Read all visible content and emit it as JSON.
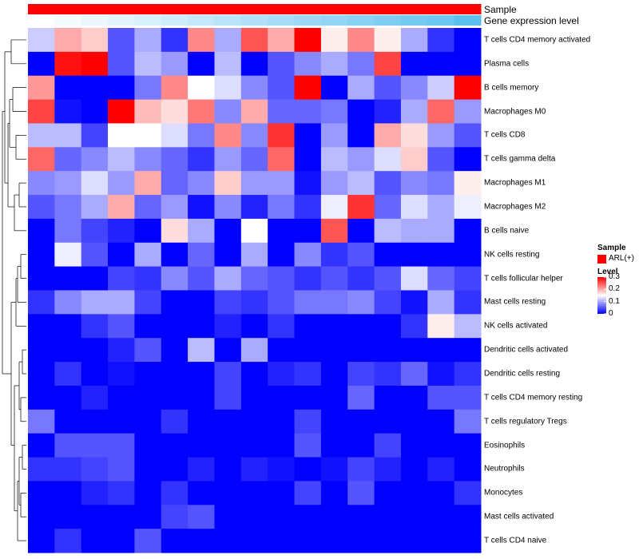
{
  "chart_data": {
    "type": "heatmap",
    "title": "",
    "column_annotations": [
      {
        "name": "Sample",
        "color": "#ff0000",
        "values": [
          "ARL(+)",
          "ARL(+)",
          "ARL(+)",
          "ARL(+)",
          "ARL(+)",
          "ARL(+)",
          "ARL(+)",
          "ARL(+)",
          "ARL(+)",
          "ARL(+)",
          "ARL(+)",
          "ARL(+)",
          "ARL(+)",
          "ARL(+)",
          "ARL(+)",
          "ARL(+)",
          "ARL(+)"
        ]
      },
      {
        "name": "Gene expression level",
        "color_low": "#ffffff",
        "color_high": "#5bc0ee",
        "values": [
          0.0,
          0.06,
          0.12,
          0.18,
          0.24,
          0.3,
          0.36,
          0.42,
          0.48,
          0.54,
          0.6,
          0.66,
          0.72,
          0.78,
          0.84,
          0.9,
          1.0
        ]
      }
    ],
    "rows": [
      "T cells CD4 memory activated",
      "Plasma cells",
      "B cells memory",
      "Macrophages M0",
      "T cells CD8",
      "T cells gamma delta",
      "Macrophages M1",
      "Macrophages M2",
      "B cells naive",
      "NK cells resting",
      "T cells follicular helper",
      "Mast cells resting",
      "NK cells activated",
      "Dendritic cells activated",
      "Dendritic cells resting",
      "T cells CD4 memory resting",
      "T cells regulatory  Tregs",
      "Eosinophils",
      "Neutrophils",
      "Monocytes",
      "Mast cells activated",
      "T cells CD4 naive"
    ],
    "values": [
      [
        0.12,
        0.2,
        0.18,
        0.05,
        0.1,
        0.03,
        0.22,
        0.1,
        0.25,
        0.2,
        0.3,
        0.16,
        0.22,
        0.16,
        0.1,
        0.03,
        0.0
      ],
      [
        0.0,
        0.29,
        0.3,
        0.05,
        0.11,
        0.09,
        0.0,
        0.11,
        0.0,
        0.05,
        0.08,
        0.1,
        0.07,
        0.26,
        0.0,
        0.0,
        0.0
      ],
      [
        0.21,
        0.0,
        0.0,
        0.0,
        0.07,
        0.22,
        0.15,
        0.13,
        0.08,
        0.05,
        0.3,
        0.0,
        0.1,
        0.05,
        0.08,
        0.12,
        0.3
      ],
      [
        0.26,
        0.01,
        0.0,
        0.3,
        0.19,
        0.17,
        0.23,
        0.08,
        0.2,
        0.06,
        0.06,
        0.07,
        0.0,
        0.02,
        0.1,
        0.24,
        0.09
      ],
      [
        0.11,
        0.11,
        0.04,
        0.15,
        0.15,
        0.13,
        0.07,
        0.22,
        0.08,
        0.27,
        0.0,
        0.09,
        0.0,
        0.2,
        0.17,
        0.09,
        0.05
      ],
      [
        0.24,
        0.06,
        0.08,
        0.11,
        0.08,
        0.06,
        0.03,
        0.09,
        0.06,
        0.24,
        0.0,
        0.11,
        0.09,
        0.13,
        0.18,
        0.05,
        0.0
      ],
      [
        0.08,
        0.09,
        0.13,
        0.09,
        0.2,
        0.06,
        0.08,
        0.18,
        0.09,
        0.09,
        0.01,
        0.09,
        0.11,
        0.05,
        0.08,
        0.07,
        0.16
      ],
      [
        0.05,
        0.07,
        0.1,
        0.2,
        0.06,
        0.09,
        0.01,
        0.08,
        0.02,
        0.07,
        0.03,
        0.14,
        0.27,
        0.06,
        0.13,
        0.1,
        0.14
      ],
      [
        0.0,
        0.07,
        0.04,
        0.02,
        0.0,
        0.17,
        0.1,
        0.0,
        0.15,
        0.0,
        0.0,
        0.25,
        0.0,
        0.11,
        0.1,
        0.1,
        0.0
      ],
      [
        0.0,
        0.14,
        0.05,
        0.0,
        0.1,
        0.0,
        0.06,
        0.0,
        0.1,
        0.0,
        0.08,
        0.03,
        0.05,
        0.0,
        0.0,
        0.0,
        0.0
      ],
      [
        0.0,
        0.0,
        0.0,
        0.04,
        0.03,
        0.08,
        0.05,
        0.1,
        0.06,
        0.05,
        0.03,
        0.05,
        0.03,
        0.05,
        0.13,
        0.06,
        0.04
      ],
      [
        0.03,
        0.08,
        0.1,
        0.1,
        0.04,
        0.0,
        0.0,
        0.04,
        0.03,
        0.05,
        0.07,
        0.07,
        0.08,
        0.04,
        0.01,
        0.1,
        0.03
      ],
      [
        0.0,
        0.0,
        0.03,
        0.05,
        0.0,
        0.0,
        0.0,
        0.02,
        0.0,
        0.03,
        0.0,
        0.0,
        0.0,
        0.0,
        0.03,
        0.16,
        0.11
      ],
      [
        0.0,
        0.0,
        0.0,
        0.02,
        0.05,
        0.0,
        0.11,
        0.0,
        0.1,
        0.0,
        0.0,
        0.0,
        0.0,
        0.0,
        0.0,
        0.0,
        0.0
      ],
      [
        0.0,
        0.03,
        0.0,
        0.01,
        0.0,
        0.0,
        0.0,
        0.04,
        0.0,
        0.02,
        0.03,
        0.0,
        0.04,
        0.03,
        0.06,
        0.01,
        0.03
      ],
      [
        0.0,
        0.0,
        0.02,
        0.0,
        0.0,
        0.0,
        0.0,
        0.04,
        0.0,
        0.0,
        0.0,
        0.0,
        0.06,
        0.0,
        0.0,
        0.05,
        0.05
      ],
      [
        0.07,
        0.0,
        0.0,
        0.0,
        0.0,
        0.03,
        0.0,
        0.0,
        0.0,
        0.0,
        0.04,
        0.0,
        0.0,
        0.0,
        0.0,
        0.0,
        0.07
      ],
      [
        0.0,
        0.05,
        0.05,
        0.05,
        0.0,
        0.0,
        0.0,
        0.0,
        0.0,
        0.0,
        0.05,
        0.0,
        0.0,
        0.04,
        0.0,
        0.0,
        0.0
      ],
      [
        0.03,
        0.03,
        0.04,
        0.05,
        0.0,
        0.0,
        0.02,
        0.0,
        0.02,
        0.01,
        0.0,
        0.01,
        0.04,
        0.02,
        0.0,
        0.02,
        0.0
      ],
      [
        0.0,
        0.0,
        0.02,
        0.03,
        0.0,
        0.03,
        0.0,
        0.0,
        0.0,
        0.0,
        0.04,
        0.0,
        0.05,
        0.0,
        0.0,
        0.0,
        0.03
      ],
      [
        0.0,
        0.0,
        0.0,
        0.0,
        0.0,
        0.04,
        0.05,
        0.0,
        0.0,
        0.0,
        0.0,
        0.0,
        0.0,
        0.0,
        0.0,
        0.0,
        0.0
      ],
      [
        0.0,
        0.03,
        0.0,
        0.0,
        0.05,
        0.0,
        0.0,
        0.0,
        0.0,
        0.0,
        0.0,
        0.0,
        0.0,
        0.0,
        0.0,
        0.0,
        0.0
      ]
    ],
    "color_scale": {
      "low": "#0000ff",
      "mid": "#ffffff",
      "high": "#ff0000",
      "min": 0,
      "max": 0.3
    },
    "legend": {
      "sample_title": "Sample",
      "sample_entry": "ARL(+)",
      "level_title": "Level",
      "level_ticks": [
        "0.3",
        "0.2",
        "0.1",
        "0"
      ],
      "level_tick_values": [
        0.3,
        0.2,
        0.1,
        0
      ],
      "placement": "right"
    },
    "row_dendrogram": true,
    "column_dendrogram": false
  }
}
